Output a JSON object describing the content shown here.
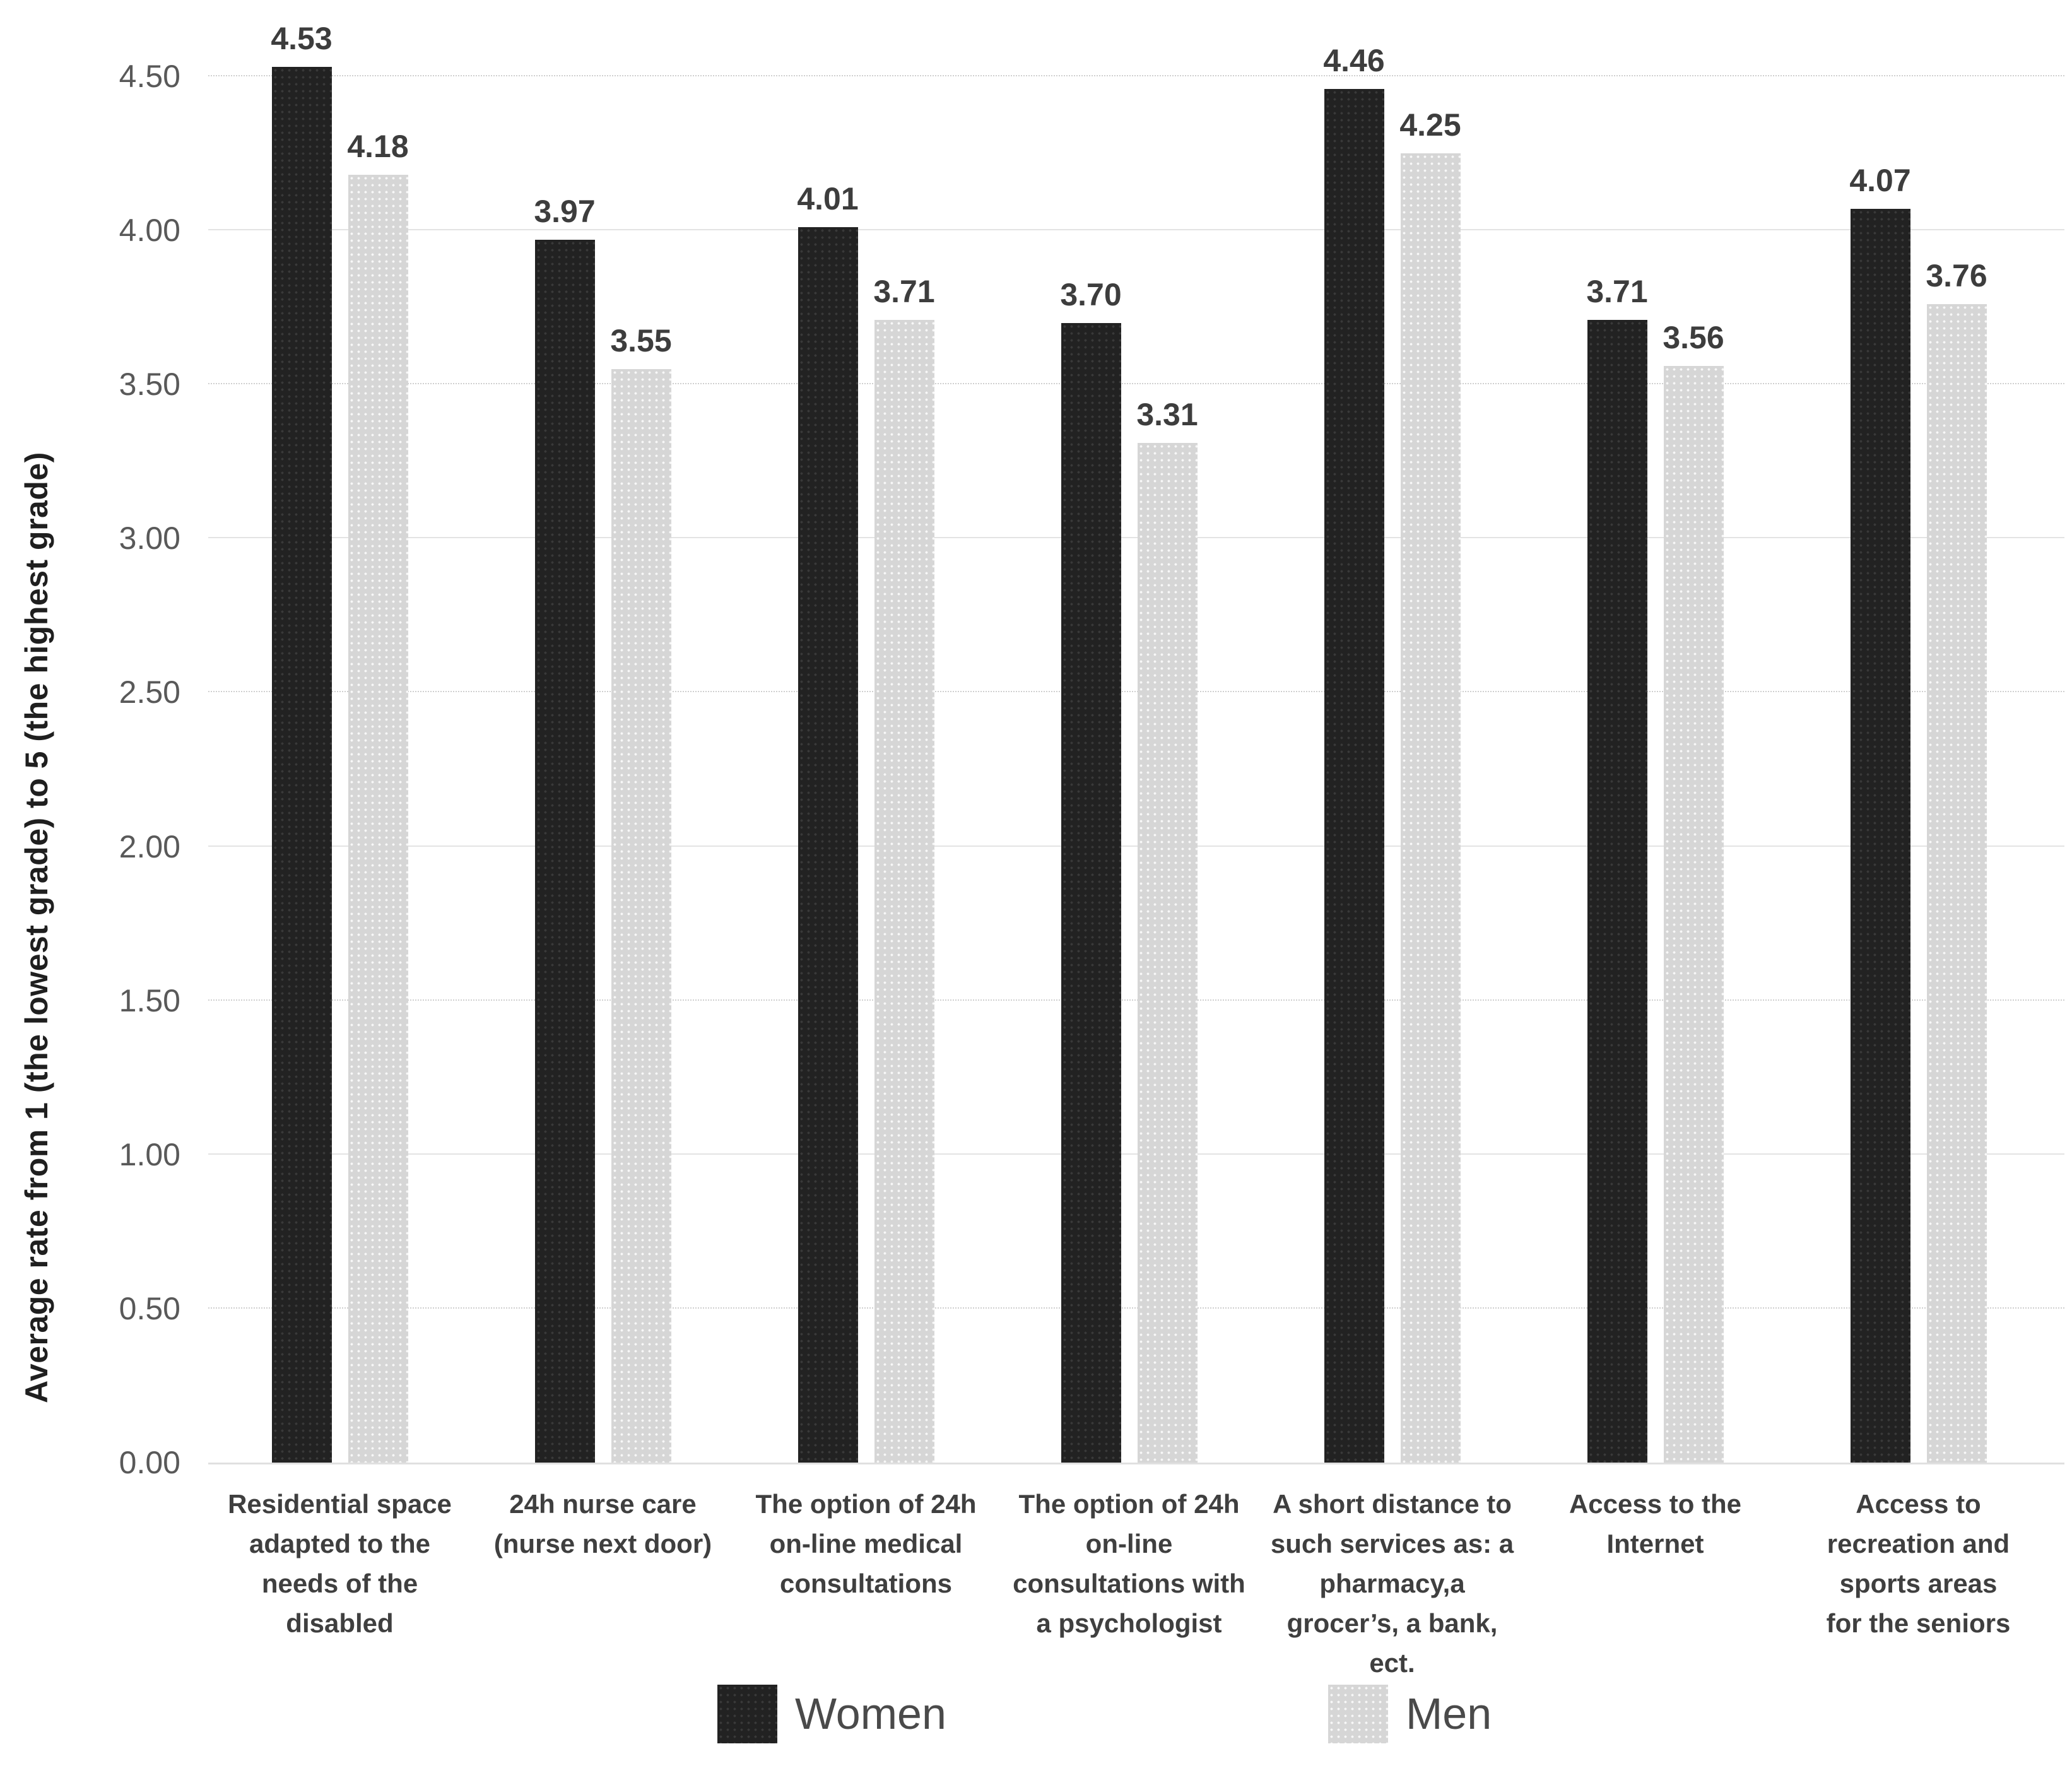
{
  "chart_data": {
    "type": "bar",
    "categories": [
      "Residential space\nadapted to the\nneeds of the\ndisabled",
      "24h nurse care\n(nurse next door)",
      "The option of 24h\non-line medical\nconsultations",
      "The option of 24h\non-line\nconsultations with\na psychologist",
      "A short distance to\nsuch services as: a\npharmacy,a\ngrocer’s, a bank,\nect.",
      "Access to the\nInternet",
      "Access to\nrecreation and\nsports areas\nfor the seniors"
    ],
    "series": [
      {
        "name": "Women",
        "color": "#222222",
        "values": [
          4.53,
          3.97,
          4.01,
          3.7,
          4.46,
          3.71,
          4.07
        ]
      },
      {
        "name": "Men",
        "color": "#d6d6d6",
        "values": [
          4.18,
          3.55,
          3.71,
          3.31,
          4.25,
          3.56,
          3.76
        ]
      }
    ],
    "value_labels": {
      "Women": [
        "4.53",
        "3.97",
        "4.01",
        "3.70",
        "4.46",
        "3.71",
        "4.07"
      ],
      "Men": [
        "4.18",
        "3.55",
        "3.71",
        "3.31",
        "4.25",
        "3.56",
        "3.76"
      ]
    },
    "title": "",
    "xlabel": "",
    "ylabel": "Average rate from 1 (the lowest grade) to 5 (the highest grade)",
    "ylim": [
      0,
      4.5
    ],
    "ytick_step": 0.5,
    "yticks": [
      "0.00",
      "0.50",
      "1.00",
      "1.50",
      "2.00",
      "2.50",
      "3.00",
      "3.50",
      "4.00",
      "4.50"
    ],
    "grid": true,
    "gridline_style": "major solid, half-step dotted",
    "legend_position": "bottom",
    "legend": [
      "Women",
      "Men"
    ]
  },
  "style_colors": {
    "bar_women": "#222222",
    "bar_men": "#d6d6d6",
    "gridline": "#e3e3e3",
    "axis_line": "#e0e0e0",
    "tick_label": "#595959",
    "value_label": "#3d3d3d",
    "category_label": "#3f3f3f",
    "legend_text": "#4a4a4a",
    "background": "#ffffff"
  }
}
